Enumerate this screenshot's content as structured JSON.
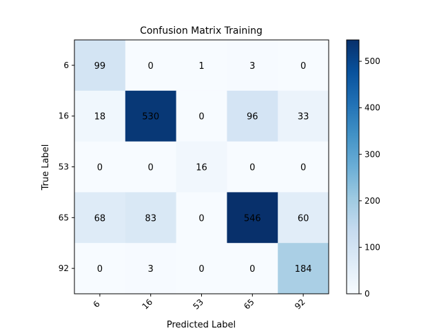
{
  "chart_data": {
    "type": "heatmap",
    "title": "Confusion Matrix Training",
    "xlabel": "Predicted Label",
    "ylabel": "True Label",
    "x_categories": [
      "6",
      "16",
      "53",
      "65",
      "92"
    ],
    "y_categories": [
      "6",
      "16",
      "53",
      "65",
      "92"
    ],
    "values": [
      [
        99,
        0,
        1,
        3,
        0
      ],
      [
        18,
        530,
        0,
        96,
        33
      ],
      [
        0,
        0,
        16,
        0,
        0
      ],
      [
        68,
        83,
        0,
        546,
        60
      ],
      [
        0,
        3,
        0,
        0,
        184
      ]
    ],
    "colormap": "Blues",
    "colorbar": {
      "range": [
        0,
        546
      ],
      "ticks": [
        0,
        100,
        200,
        300,
        400,
        500
      ]
    },
    "x_tick_rotation_deg": 45,
    "grid": false,
    "legend": "none"
  }
}
